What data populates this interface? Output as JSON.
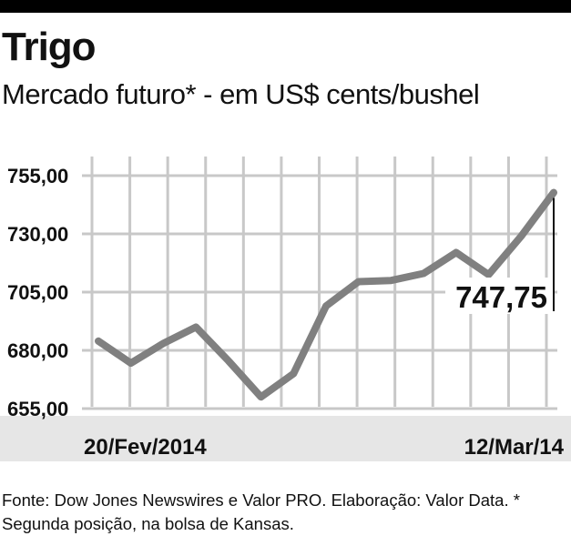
{
  "header": {
    "title": "Trigo",
    "subtitle": "Mercado futuro* - em US$ cents/bushel"
  },
  "chart_data": {
    "type": "line",
    "title": "Trigo",
    "subtitle": "Mercado futuro* - em US$ cents/bushel",
    "y_ticks": [
      "755,00",
      "730,00",
      "705,00",
      "680,00",
      "655,00"
    ],
    "ylim": [
      655,
      755
    ],
    "x_labels": {
      "start": "20/Fev/2014",
      "end": "12/Mar/14"
    },
    "values": [
      684,
      674.5,
      683,
      690,
      675.5,
      660,
      670,
      699,
      709.5,
      710,
      713,
      722,
      712.5,
      729,
      747.75
    ],
    "annotation": {
      "label": "747,75",
      "value": 747.75
    },
    "grid": true,
    "line_color": "#808080",
    "grid_color": "#c8c8c8",
    "axis_band_color": "#e6e6e6"
  },
  "footer": {
    "source": "Fonte: Dow Jones Newswires e Valor PRO. Elaboração: Valor Data. * Segunda posição, na bolsa de Kansas."
  }
}
